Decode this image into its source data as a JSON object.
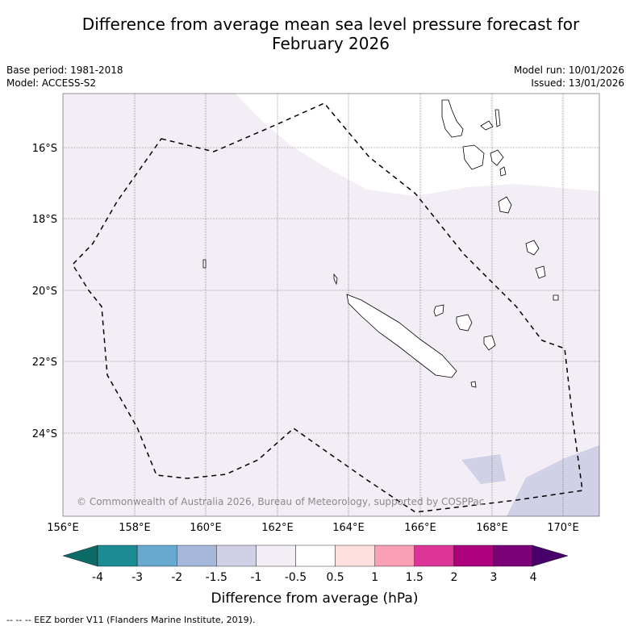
{
  "header": {
    "title_line1": "Difference from average mean sea level pressure forecast for",
    "title_line2": "February 2026",
    "base_period": "Base period: 1981-2018",
    "model": "Model: ACCESS-S2",
    "model_run": "Model run: 10/01/2026",
    "issued": "Issued: 13/01/2026"
  },
  "map": {
    "lon_ticks": [
      "156°E",
      "158°E",
      "160°E",
      "162°E",
      "164°E",
      "166°E",
      "168°E",
      "170°E"
    ],
    "lat_ticks": [
      "16°S",
      "18°S",
      "20°S",
      "22°S",
      "24°S"
    ],
    "credit": "© Commonwealth of Australia 2026, Bureau of Meteorology, supported by COSPPac"
  },
  "colorbar": {
    "tick_labels": [
      "-4",
      "-3",
      "-2",
      "-1.5",
      "-1",
      "-0.5",
      "0.5",
      "1",
      "1.5",
      "2",
      "3",
      "4"
    ],
    "colors": [
      "#1c8c94",
      "#67a9cf",
      "#a6b8da",
      "#d0d0e6",
      "#f3eef6",
      "#ffffff",
      "#fde0dd",
      "#fa9fb5",
      "#dd3497",
      "#ae017e",
      "#7a0177"
    ],
    "extend_low_color": "#0d6b66",
    "extend_high_color": "#49006a",
    "label": "Difference from average (hPa)"
  },
  "legend": {
    "eez_label": "--  --  -- EEZ border V11 (Flanders Marine Institute, 2019)."
  }
}
